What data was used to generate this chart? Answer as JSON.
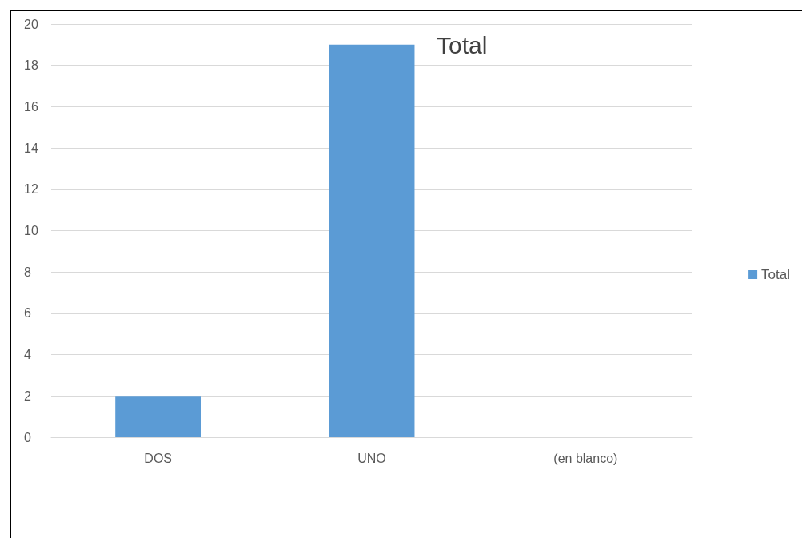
{
  "chart_data": {
    "type": "bar",
    "title": "Total",
    "categories": [
      "DOS",
      "UNO",
      "(en blanco)"
    ],
    "series": [
      {
        "name": "Total",
        "color": "#5b9bd5",
        "values": [
          2,
          19,
          null
        ]
      }
    ],
    "ylim": [
      0,
      20
    ],
    "yticks": [
      0,
      2,
      4,
      6,
      8,
      10,
      12,
      14,
      16,
      18,
      20
    ],
    "grid": "y",
    "legend": "right"
  }
}
